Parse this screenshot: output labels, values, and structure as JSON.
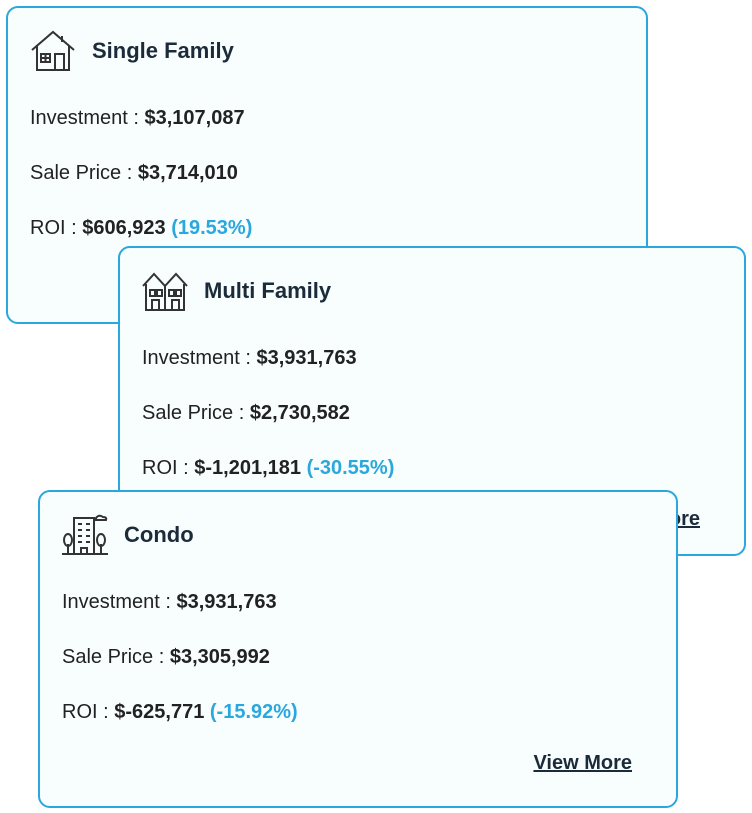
{
  "cards": [
    {
      "title": "Single Family",
      "investment_label": "Investment :",
      "investment": "$3,107,087",
      "sale_price_label": "Sale Price :",
      "sale_price": "$3,714,010",
      "roi_label": "ROI :",
      "roi": "$606,923",
      "roi_percent": "(19.53%)"
    },
    {
      "title": "Multi Family",
      "investment_label": "Investment :",
      "investment": "$3,931,763",
      "sale_price_label": "Sale Price :",
      "sale_price": "$2,730,582",
      "roi_label": "ROI :",
      "roi": "$-1,201,181",
      "roi_percent": "(-30.55%)",
      "link": "View More"
    },
    {
      "title": "Condo",
      "investment_label": "Investment :",
      "investment": "$3,931,763",
      "sale_price_label": "Sale Price :",
      "sale_price": "$3,305,992",
      "roi_label": "ROI :",
      "roi": "$-625,771",
      "roi_percent": "(-15.92%)",
      "link": "View More"
    }
  ]
}
